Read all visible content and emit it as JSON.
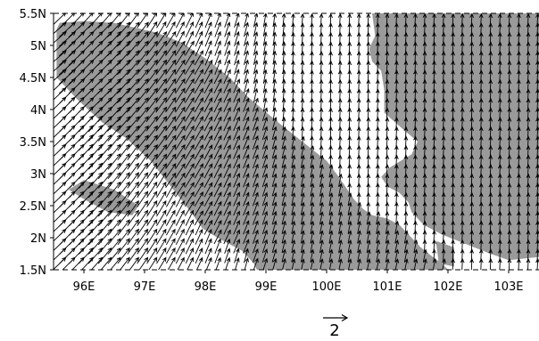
{
  "map": {
    "lon_range": [
      95.5,
      103.5
    ],
    "lat_range": [
      1.5,
      5.5
    ],
    "x_ticks": [
      {
        "value": 96,
        "label": "96E"
      },
      {
        "value": 97,
        "label": "97E"
      },
      {
        "value": 98,
        "label": "98E"
      },
      {
        "value": 99,
        "label": "99E"
      },
      {
        "value": 100,
        "label": "100E"
      },
      {
        "value": 101,
        "label": "101E"
      },
      {
        "value": 102,
        "label": "102E"
      },
      {
        "value": 103,
        "label": "103E"
      }
    ],
    "y_ticks": [
      {
        "value": 1.5,
        "label": "1.5N"
      },
      {
        "value": 2,
        "label": "2N"
      },
      {
        "value": 2.5,
        "label": "2.5N"
      },
      {
        "value": 3,
        "label": "3N"
      },
      {
        "value": 3.5,
        "label": "3.5N"
      },
      {
        "value": 4,
        "label": "4N"
      },
      {
        "value": 4.5,
        "label": "4.5N"
      },
      {
        "value": 5,
        "label": "5N"
      },
      {
        "value": 5.5,
        "label": "5.5N"
      }
    ],
    "reference_vector": {
      "label": "2"
    },
    "colors": {
      "shading": "#9a9a9a",
      "vectors": "#000000",
      "background": "#ffffff"
    },
    "shaded_regions": [
      {
        "name": "northwest-band",
        "points": [
          [
            95.55,
            5.25
          ],
          [
            95.6,
            5.35
          ],
          [
            96.0,
            5.38
          ],
          [
            96.5,
            5.35
          ],
          [
            97.2,
            5.2
          ],
          [
            97.6,
            5.05
          ],
          [
            98.0,
            4.8
          ],
          [
            98.4,
            4.5
          ],
          [
            98.7,
            4.2
          ],
          [
            99.2,
            3.8
          ],
          [
            99.6,
            3.5
          ],
          [
            100.0,
            3.2
          ],
          [
            100.2,
            2.95
          ],
          [
            100.45,
            2.6
          ],
          [
            100.6,
            2.45
          ],
          [
            100.75,
            2.35
          ],
          [
            101.0,
            2.3
          ],
          [
            101.2,
            2.2
          ],
          [
            101.4,
            2.0
          ],
          [
            101.55,
            1.85
          ],
          [
            101.75,
            1.7
          ],
          [
            101.9,
            1.6
          ],
          [
            102.0,
            1.5
          ],
          [
            98.85,
            1.5
          ],
          [
            98.8,
            1.6
          ],
          [
            98.7,
            1.7
          ],
          [
            98.6,
            1.8
          ],
          [
            98.4,
            1.9
          ],
          [
            98.2,
            2.0
          ],
          [
            97.95,
            2.15
          ],
          [
            97.8,
            2.35
          ],
          [
            97.6,
            2.6
          ],
          [
            97.35,
            2.9
          ],
          [
            97.1,
            3.2
          ],
          [
            96.7,
            3.55
          ],
          [
            96.3,
            3.8
          ],
          [
            95.9,
            4.15
          ],
          [
            95.7,
            4.35
          ],
          [
            95.55,
            4.5
          ]
        ]
      },
      {
        "name": "east-region",
        "points": [
          [
            100.75,
            5.5
          ],
          [
            103.5,
            5.5
          ],
          [
            103.5,
            1.7
          ],
          [
            103.0,
            1.65
          ],
          [
            102.7,
            1.75
          ],
          [
            102.3,
            1.9
          ],
          [
            101.9,
            2.05
          ],
          [
            101.6,
            2.2
          ],
          [
            101.4,
            2.4
          ],
          [
            101.35,
            2.55
          ],
          [
            101.2,
            2.7
          ],
          [
            101.0,
            2.8
          ],
          [
            100.9,
            2.95
          ],
          [
            101.05,
            3.1
          ],
          [
            101.4,
            3.3
          ],
          [
            101.5,
            3.5
          ],
          [
            101.25,
            3.7
          ],
          [
            100.95,
            3.95
          ],
          [
            100.95,
            4.3
          ],
          [
            100.9,
            4.6
          ],
          [
            100.75,
            4.75
          ],
          [
            100.7,
            4.95
          ],
          [
            100.8,
            5.15
          ]
        ]
      },
      {
        "name": "southwest-patch",
        "points": [
          [
            96.0,
            2.9
          ],
          [
            96.5,
            2.75
          ],
          [
            96.9,
            2.5
          ],
          [
            96.8,
            2.35
          ],
          [
            96.4,
            2.4
          ],
          [
            96.0,
            2.6
          ],
          [
            95.75,
            2.75
          ]
        ]
      },
      {
        "name": "south-patch",
        "points": [
          [
            101.8,
            1.95
          ],
          [
            102.1,
            1.85
          ],
          [
            102.1,
            1.55
          ],
          [
            101.85,
            1.6
          ]
        ]
      }
    ]
  }
}
